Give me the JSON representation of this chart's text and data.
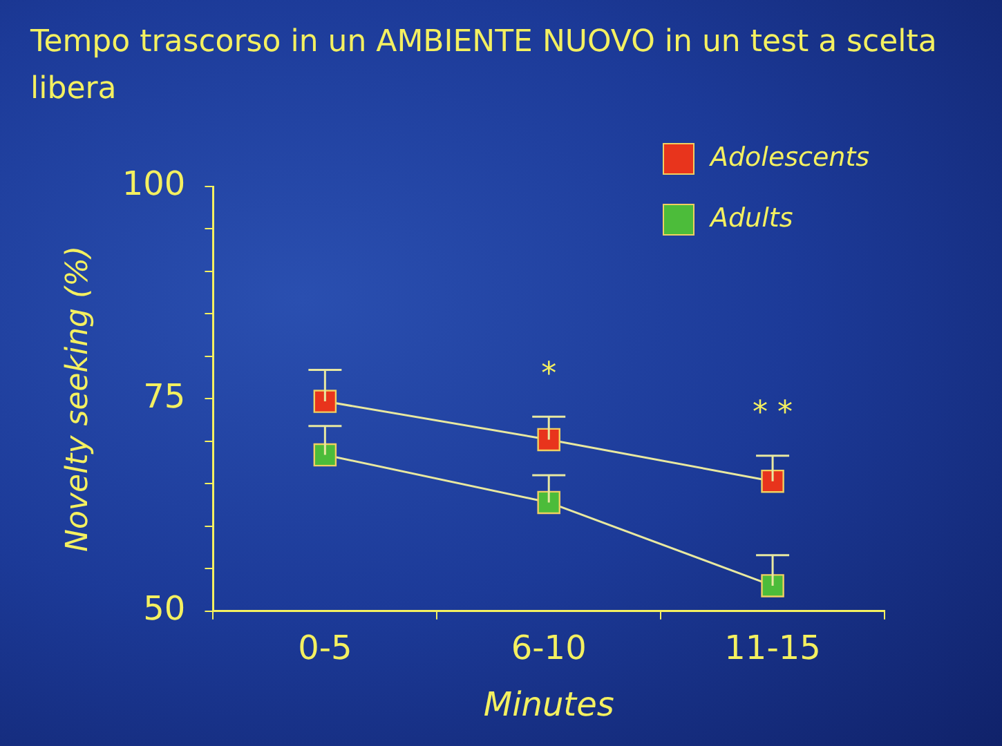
{
  "chart_data": {
    "type": "line",
    "title": "Tempo trascorso in un AMBIENTE NUOVO in un test a scelta libera",
    "xlabel": "Minutes",
    "ylabel": "Novelty seeking (%)",
    "categories": [
      "0-5",
      "6-10",
      "11-15"
    ],
    "series": [
      {
        "name": "Adolescents",
        "color": "#e8341c",
        "values": [
          74.7,
          70.2,
          65.3
        ],
        "errors": [
          [
            74.7,
            78.4
          ],
          [
            70.2,
            72.9
          ],
          [
            65.3,
            68.3
          ]
        ]
      },
      {
        "name": "Adults",
        "color": "#4cbc3a",
        "values": [
          68.4,
          62.8,
          53.0
        ],
        "errors": [
          [
            68.4,
            71.8
          ],
          [
            62.8,
            66.0
          ],
          [
            53.0,
            56.6
          ]
        ]
      }
    ],
    "ylim": [
      50,
      100
    ],
    "yticks": [
      50,
      {
        "value": 55,
        "label": null
      },
      {
        "value": 60,
        "label": null
      },
      {
        "value": 65,
        "label": null
      },
      {
        "value": 70,
        "label": null
      },
      75,
      {
        "value": 80,
        "label": null
      },
      {
        "value": 85,
        "label": null
      },
      {
        "value": 90,
        "label": null
      },
      {
        "value": 95,
        "label": null
      },
      100
    ],
    "annotations": [
      "*",
      "* *"
    ],
    "marker": "square",
    "line_style": "solid",
    "grid": false,
    "legend": "top right"
  }
}
